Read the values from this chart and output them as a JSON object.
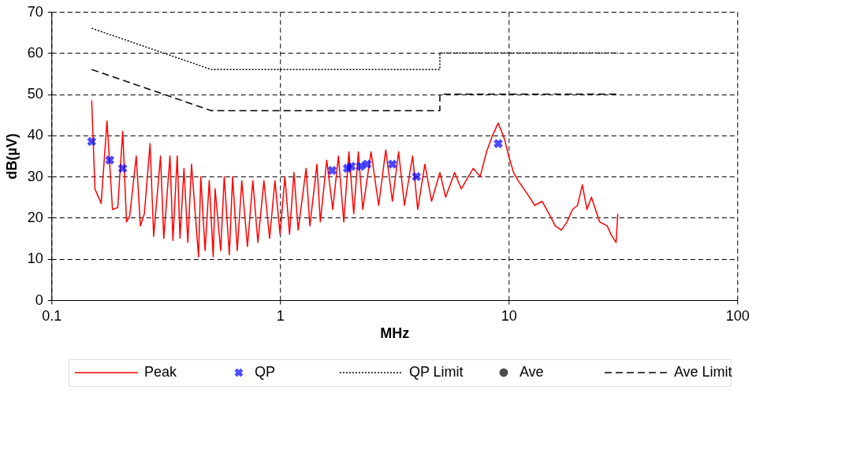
{
  "chart_data": {
    "type": "line",
    "xlabel": "MHz",
    "ylabel": "dB(µV)",
    "log": "x",
    "xlim": [
      0.1,
      100
    ],
    "xticks": [
      0.1,
      1,
      10,
      100
    ],
    "ylim": [
      0,
      70
    ],
    "yticks": [
      0,
      10,
      20,
      30,
      40,
      50,
      60,
      70
    ],
    "grid": true,
    "legend": "bottom",
    "series": [
      {
        "name": "Peak",
        "color": "#ff0000",
        "line_style": "solid",
        "x": [
          0.15,
          0.155,
          0.165,
          0.175,
          0.185,
          0.195,
          0.205,
          0.213,
          0.22,
          0.235,
          0.245,
          0.255,
          0.27,
          0.28,
          0.3,
          0.31,
          0.33,
          0.34,
          0.355,
          0.365,
          0.38,
          0.395,
          0.41,
          0.44,
          0.45,
          0.47,
          0.49,
          0.51,
          0.52,
          0.55,
          0.57,
          0.6,
          0.62,
          0.65,
          0.68,
          0.72,
          0.76,
          0.8,
          0.85,
          0.9,
          0.95,
          1.0,
          1.05,
          1.1,
          1.15,
          1.2,
          1.3,
          1.35,
          1.45,
          1.5,
          1.6,
          1.7,
          1.8,
          1.9,
          2.0,
          2.1,
          2.2,
          2.3,
          2.5,
          2.7,
          2.9,
          3.1,
          3.3,
          3.5,
          3.8,
          4.0,
          4.3,
          4.6,
          5.0,
          5.3,
          5.8,
          6.2,
          7.0,
          7.5,
          8.0,
          8.5,
          9.0,
          9.3,
          9.6,
          10.0,
          10.5,
          11,
          12,
          13,
          14,
          15,
          16,
          17,
          18,
          19,
          20,
          21,
          22,
          23,
          25,
          27,
          28,
          29.5,
          30
        ],
        "values": [
          48.5,
          27,
          23.5,
          43.5,
          22,
          22.5,
          41,
          19,
          20.5,
          35,
          18,
          21,
          38,
          15.5,
          35,
          15,
          35,
          14.5,
          35,
          15,
          32,
          14,
          33,
          10.5,
          30,
          12,
          29,
          10.5,
          27,
          12,
          30,
          11,
          30,
          12,
          29,
          13,
          29,
          14,
          29,
          15,
          29,
          16,
          30,
          16,
          31,
          17,
          32,
          18,
          33,
          19,
          34,
          22,
          35,
          19,
          36,
          21,
          36,
          22,
          36,
          23,
          36.5,
          24,
          36,
          23,
          35,
          22,
          33,
          24,
          31,
          25,
          31,
          27,
          32,
          30,
          36,
          40,
          43,
          41,
          39,
          35,
          31,
          29,
          26,
          23,
          24,
          21,
          18,
          17,
          19,
          22,
          23,
          28,
          22,
          25,
          19,
          18,
          16,
          14,
          21
        ]
      },
      {
        "name": "QP",
        "type": "scatter",
        "color": "#0000ff",
        "marker": "cross",
        "x": [
          0.15,
          0.18,
          0.205,
          1.69,
          1.97,
          2.05,
          2.25,
          2.4,
          3.1,
          3.95,
          9.0
        ],
        "values": [
          38.5,
          34,
          32,
          31.5,
          32,
          32.5,
          32.5,
          33,
          33,
          30,
          38
        ]
      },
      {
        "name": "QP Limit",
        "color": "#000000",
        "line_style": "dotted",
        "x": [
          0.15,
          0.5,
          5,
          5,
          30
        ],
        "values": [
          66,
          56,
          56,
          60,
          60
        ]
      },
      {
        "name": "Ave",
        "type": "scatter",
        "color": "#000000",
        "marker": "circle"
      },
      {
        "name": "Ave Limit",
        "color": "#000000",
        "line_style": "dashed",
        "x": [
          0.15,
          0.5,
          5,
          5,
          30
        ],
        "values": [
          56,
          46,
          46,
          50,
          50
        ]
      }
    ]
  }
}
